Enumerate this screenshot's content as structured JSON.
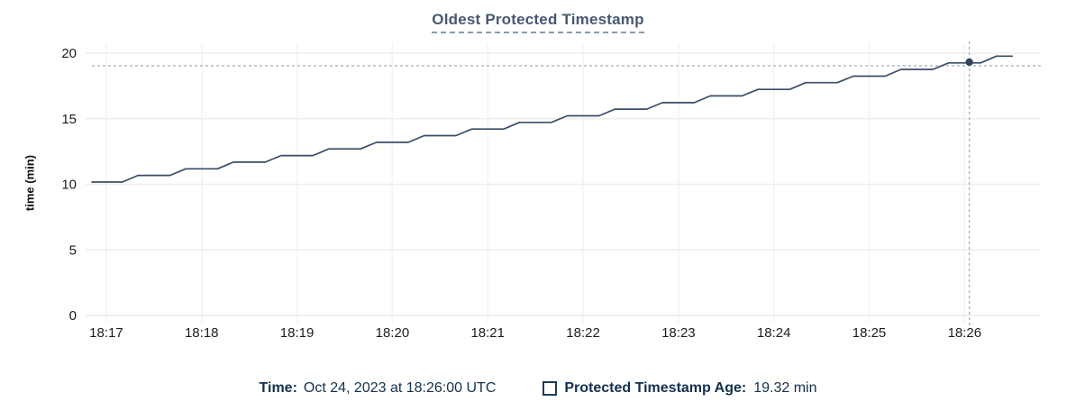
{
  "title": "Oldest Protected Timestamp",
  "y_axis_label": "time (min)",
  "legend": {
    "time_label": "Time:",
    "time_value": "Oct 24, 2023 at 18:26:00 UTC",
    "series_label": "Protected Timestamp Age:",
    "series_value": "19.32 min"
  },
  "colors": {
    "line": "#3a4c66",
    "dot": "#32435c",
    "crosshair": "#a8b7c1",
    "grid_horizontal": "#ededee",
    "grid_vertical": "#f3f3f4",
    "tick_text": "#1c1c1c",
    "title_text": "#475872",
    "legend_text": "#14304e"
  },
  "chart_data": {
    "type": "line",
    "title": "Oldest Protected Timestamp",
    "xlabel": "",
    "ylabel": "time (min)",
    "ylim": [
      0,
      20
    ],
    "y_ticks": [
      0,
      5,
      10,
      15,
      20
    ],
    "x_ticks": [
      "18:17",
      "18:18",
      "18:19",
      "18:20",
      "18:21",
      "18:22",
      "18:23",
      "18:24",
      "18:25",
      "18:26"
    ],
    "x_range": [
      "18:16:47",
      "18:26:48"
    ],
    "grid": true,
    "legend_position": "bottom",
    "series": [
      {
        "name": "Protected Timestamp Age",
        "unit": "min",
        "points": [
          [
            "18:16:51",
            10.17
          ],
          [
            "18:17:10",
            10.17
          ],
          [
            "18:17:20",
            10.68
          ],
          [
            "18:17:40",
            10.68
          ],
          [
            "18:17:50",
            11.18
          ],
          [
            "18:18:10",
            11.18
          ],
          [
            "18:18:20",
            11.69
          ],
          [
            "18:18:40",
            11.69
          ],
          [
            "18:18:50",
            12.19
          ],
          [
            "18:19:10",
            12.19
          ],
          [
            "18:19:20",
            12.7
          ],
          [
            "18:19:40",
            12.7
          ],
          [
            "18:19:50",
            13.2
          ],
          [
            "18:20:10",
            13.2
          ],
          [
            "18:20:20",
            13.71
          ],
          [
            "18:20:40",
            13.71
          ],
          [
            "18:20:50",
            14.21
          ],
          [
            "18:21:10",
            14.21
          ],
          [
            "18:21:20",
            14.72
          ],
          [
            "18:21:40",
            14.72
          ],
          [
            "18:21:50",
            15.22
          ],
          [
            "18:22:10",
            15.22
          ],
          [
            "18:22:20",
            15.73
          ],
          [
            "18:22:40",
            15.73
          ],
          [
            "18:22:50",
            16.23
          ],
          [
            "18:23:10",
            16.23
          ],
          [
            "18:23:20",
            16.74
          ],
          [
            "18:23:40",
            16.74
          ],
          [
            "18:23:50",
            17.24
          ],
          [
            "18:24:10",
            17.24
          ],
          [
            "18:24:20",
            17.75
          ],
          [
            "18:24:40",
            17.75
          ],
          [
            "18:24:50",
            18.25
          ],
          [
            "18:25:10",
            18.25
          ],
          [
            "18:25:20",
            18.76
          ],
          [
            "18:25:40",
            18.76
          ],
          [
            "18:25:50",
            19.26
          ],
          [
            "18:26:10",
            19.26
          ],
          [
            "18:26:20",
            19.77
          ],
          [
            "18:26:30",
            19.77
          ]
        ]
      }
    ],
    "hover_point": {
      "time": "18:26:03",
      "value": 19.32
    }
  }
}
